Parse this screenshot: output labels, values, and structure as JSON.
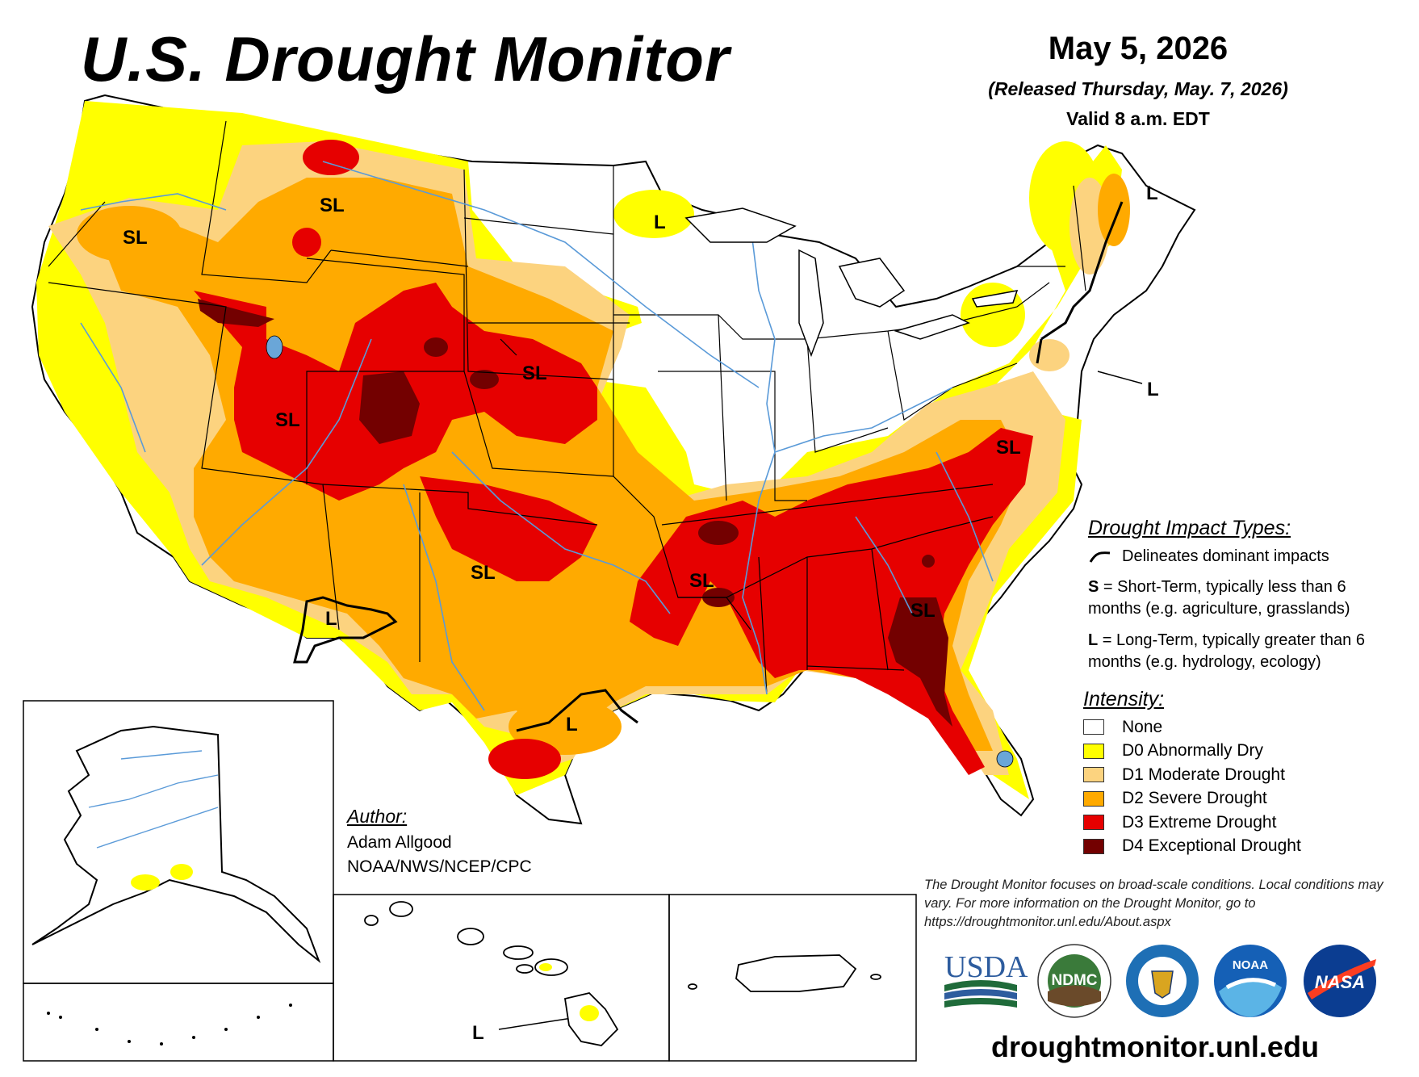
{
  "header": {
    "title": "U.S. Drought Monitor",
    "date": "May 5, 2026",
    "released": "(Released Thursday, May. 7, 2026)",
    "valid": "Valid 8 a.m. EDT"
  },
  "colors": {
    "none": "#ffffff",
    "d0": "#ffff00",
    "d1": "#fcd37f",
    "d2": "#ffaa00",
    "d3": "#e60000",
    "d4": "#730000",
    "water": "#6aa6d8"
  },
  "map_labels": {
    "sl_pacific_nw": "SL",
    "sl_montana": "SL",
    "sl_great_basin": "SL",
    "sl_plains": "SL",
    "sl_southern_plains": "SL",
    "sl_mid_south": "SL",
    "sl_southeast": "SL",
    "sl_mid_atlantic": "SL",
    "l_minnesota": "L",
    "l_maine": "L",
    "l_northeast": "L",
    "l_new_mexico": "L",
    "l_texas": "L",
    "l_hawaii": "L"
  },
  "legend": {
    "impact_heading": "Drought Impact Types:",
    "impact_line": "Delineates dominant impacts",
    "short_term_key": "S",
    "short_term_text": " = Short-Term, typically less than 6 months (e.g. agriculture, grasslands)",
    "long_term_key": "L",
    "long_term_text": " = Long-Term, typically greater than 6 months (e.g. hydrology, ecology)",
    "intensity_heading": "Intensity:",
    "intensity_items": [
      {
        "label": "None",
        "color": "#ffffff"
      },
      {
        "label": "D0 Abnormally Dry",
        "color": "#ffff00"
      },
      {
        "label": "D1 Moderate Drought",
        "color": "#fcd37f"
      },
      {
        "label": "D2 Severe Drought",
        "color": "#ffaa00"
      },
      {
        "label": "D3 Extreme Drought",
        "color": "#e60000"
      },
      {
        "label": "D4 Exceptional Drought",
        "color": "#730000"
      }
    ]
  },
  "author": {
    "heading": "Author:",
    "name": "Adam Allgood",
    "org": "NOAA/NWS/NCEP/CPC"
  },
  "disclaimer": "The Drought Monitor focuses on broad-scale conditions. Local conditions may vary. For more information on the Drought Monitor, go to https://droughtmonitor.unl.edu/About.aspx",
  "logos": {
    "usda": "USDA",
    "ndmc": "NDMC",
    "noaa": "NOAA",
    "nasa": "NASA"
  },
  "website": "droughtmonitor.unl.edu"
}
